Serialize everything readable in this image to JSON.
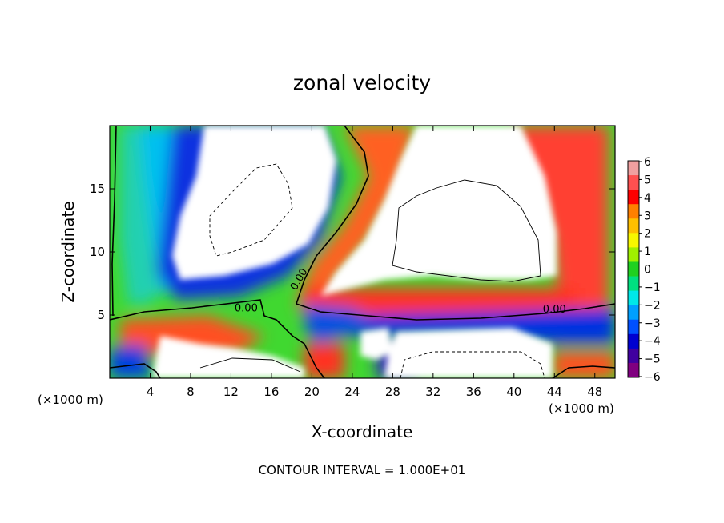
{
  "chart_data": {
    "type": "heatmap",
    "title": "zonal velocity",
    "xlabel": "X-coordinate",
    "ylabel": "Z-coordinate",
    "x_unit_label": "(×1000 m)",
    "x_unit_label_right": "(×1000 m)",
    "xlim": [
      0,
      50
    ],
    "ylim": [
      0,
      20
    ],
    "x_ticks": [
      4,
      8,
      12,
      16,
      20,
      24,
      28,
      32,
      36,
      40,
      44,
      48
    ],
    "y_ticks": [
      5,
      10,
      15
    ],
    "colorbar": {
      "min": -6,
      "max": 6,
      "ticks": [
        "6",
        "5",
        "4",
        "3",
        "2",
        "1",
        "0",
        "−1",
        "−2",
        "−3",
        "−4",
        "−5",
        "−6"
      ],
      "colors": [
        "#f0a0a0",
        "#ff5050",
        "#ff0000",
        "#ff8000",
        "#ffc000",
        "#f8f800",
        "#a0f000",
        "#20d020",
        "#00e080",
        "#00e8e8",
        "#00a0ff",
        "#0050ff",
        "#0000d0",
        "#4000a0",
        "#800080"
      ]
    },
    "contour_labels": [
      {
        "text": "0.00",
        "x": 13.5,
        "z": 5.3
      },
      {
        "text": "0.00",
        "x": 19.0,
        "z": 7.7
      },
      {
        "text": "0.00",
        "x": 44.0,
        "z": 5.2
      }
    ],
    "note": "CONTOUR INTERVAL = 1.000E+01"
  }
}
